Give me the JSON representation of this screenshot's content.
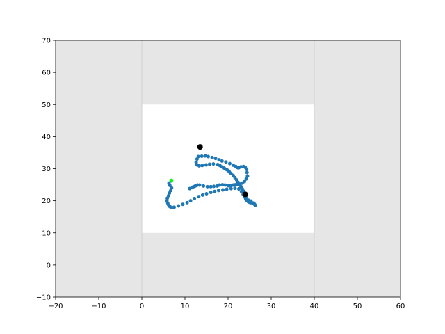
{
  "chart_data": {
    "type": "scatter",
    "title": "",
    "xlabel": "",
    "ylabel": "",
    "xlim": [
      -20,
      60
    ],
    "ylim": [
      -10,
      70
    ],
    "grid": false,
    "xticks": [
      -20,
      -10,
      0,
      10,
      20,
      30,
      40,
      50,
      60
    ],
    "yticks": [
      -10,
      0,
      10,
      20,
      30,
      40,
      50,
      60,
      70
    ],
    "xtick_labels": [
      "−20",
      "−10",
      "0",
      "10",
      "20",
      "30",
      "40",
      "50",
      "60"
    ],
    "ytick_labels": [
      "−10",
      "0",
      "10",
      "20",
      "30",
      "40",
      "50",
      "60",
      "70"
    ],
    "background_color": "#e6e6e6",
    "regions": [
      {
        "name": "outer-region",
        "x": [
          -20,
          60
        ],
        "y": [
          -10,
          70
        ],
        "color": "#e6e6e6"
      },
      {
        "name": "inner-region",
        "x": [
          0,
          40
        ],
        "y": [
          10,
          50
        ],
        "color": "#ffffff"
      }
    ],
    "vertical_lines": [
      0,
      40
    ],
    "series": [
      {
        "color": "#1f77b4",
        "marker": "dot",
        "x": [
          6.8,
          6.3,
          6.5,
          6.9,
          6.7,
          6.4,
          6.2,
          5.9,
          5.8,
          6.0,
          6.2,
          6.5,
          6.9,
          7.5,
          8.5,
          9.5,
          10.5,
          11.3,
          12.2,
          13.2,
          14.1,
          15.0,
          16.0,
          16.9,
          17.8,
          18.8,
          19.7,
          20.7,
          21.6,
          22.5,
          23.1,
          23.5,
          23.8,
          24.1,
          24.4,
          24.7,
          25.0,
          25.3,
          25.7,
          26.0,
          26.2,
          26.3,
          26.0,
          25.3,
          24.7,
          24.3,
          24.2,
          23.9,
          23.6,
          23.3,
          23.0,
          22.6,
          22.3,
          22.0,
          21.6,
          21.2,
          20.7,
          20.3,
          20.0,
          19.7,
          19.1,
          18.6,
          18.1,
          17.6,
          16.6,
          15.7,
          14.9,
          14.0,
          13.3,
          12.8,
          12.6,
          12.8,
          13.1,
          13.9,
          14.7,
          15.4,
          16.3,
          17.1,
          17.9,
          18.6,
          19.5,
          20.4,
          21.2,
          21.8,
          22.1,
          22.3,
          22.5,
          23.0,
          23.6,
          24.0,
          24.3,
          24.4,
          24.5,
          24.2,
          23.8,
          23.3,
          22.8,
          22.2,
          21.7,
          21.2,
          20.8,
          20.4,
          20.0,
          19.3,
          18.7,
          18.0,
          17.5,
          16.7,
          16.0,
          15.2,
          14.3,
          13.4,
          12.9,
          12.7,
          12.4,
          12.0,
          11.6,
          11.1
        ],
        "y": [
          26.2,
          25.5,
          24.8,
          24.0,
          23.2,
          22.4,
          21.6,
          20.8,
          20.0,
          19.3,
          18.7,
          18.2,
          17.9,
          18.0,
          18.4,
          18.9,
          19.4,
          20.0,
          20.7,
          21.3,
          21.8,
          22.2,
          22.6,
          22.9,
          23.2,
          23.4,
          23.6,
          23.8,
          23.9,
          23.7,
          22.9,
          22.0,
          21.2,
          20.5,
          20.0,
          19.7,
          19.5,
          19.4,
          19.3,
          19.0,
          18.8,
          18.6,
          19.3,
          19.9,
          20.2,
          20.5,
          21.4,
          22.2,
          23.0,
          23.7,
          24.4,
          25.1,
          25.8,
          26.5,
          27.2,
          27.9,
          28.5,
          29.0,
          29.4,
          29.7,
          30.2,
          30.6,
          31.0,
          31.3,
          31.5,
          31.4,
          31.2,
          31.0,
          30.9,
          31.2,
          32.0,
          33.0,
          33.8,
          33.9,
          34.0,
          33.8,
          33.5,
          33.2,
          32.8,
          32.4,
          32.1,
          31.6,
          31.1,
          30.7,
          30.4,
          30.3,
          30.3,
          30.6,
          30.7,
          30.4,
          29.8,
          28.8,
          27.7,
          26.8,
          26.0,
          25.5,
          25.2,
          25.1,
          25.0,
          24.9,
          24.8,
          24.7,
          24.7,
          24.9,
          25.0,
          24.9,
          24.6,
          24.5,
          24.4,
          24.4,
          24.6,
          24.9,
          24.9,
          24.8,
          24.6,
          24.4,
          24.1,
          23.8
        ]
      },
      {
        "color": "#00ff00",
        "marker": "dot",
        "x": [
          6.9
        ],
        "y": [
          26.4
        ]
      },
      {
        "color": "#000000",
        "marker": "large-dot",
        "x": [
          13.5,
          24.0
        ],
        "y": [
          36.8,
          22.0
        ]
      }
    ]
  }
}
